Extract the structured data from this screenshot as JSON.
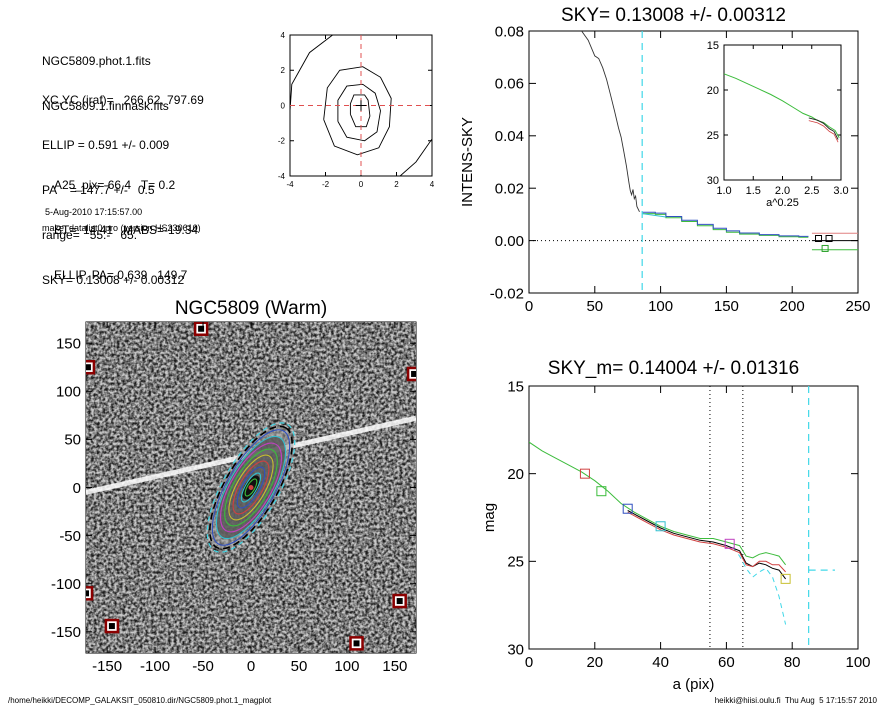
{
  "info": {
    "lines_a": [
      "NGC5809.phot.1.fits",
      "NGC5809.1.finmask.fits"
    ],
    "lines_b": [
      "XC,YC (iraf)=   266.62, 797.69",
      "ELLIP = 0.591 +/- 0.009",
      "PA    = 147.7 +/-   0.5",
      "range=   55.-   65.",
      "SKY= 0.13008 +/- 0.00312"
    ],
    "lines_c": [
      "A25_pix= 66.4   T= 0.2",
      "BT=  14.41   MABS=-19.34",
      "ELLIP, PA= 0.639   149.7"
    ],
    "timestamp": "5-Aug-2010 17:15:57.00",
    "program": "make_datalist0.pro (version HS230610)"
  },
  "footer": {
    "path": "/home/heikki/DECOMP_GALAKSIT_050810.dir/NGC5809.phot.1_magplot",
    "user": "heikki@hiisi.oulu.fi  Thu Aug  5 17:15:57 2010"
  },
  "chart_data": [
    {
      "id": "contour",
      "type": "line",
      "title": "",
      "xlim": [
        -4,
        4
      ],
      "ylim": [
        -4,
        4
      ],
      "xticks": [
        -4,
        -2,
        0,
        2,
        4
      ],
      "yticks": [
        -4,
        -2,
        0,
        2,
        4
      ],
      "xticklabels": [
        "-4",
        "-2",
        "0",
        "2",
        "4"
      ],
      "yticklabels": [
        "-4",
        "-2",
        "0",
        "2",
        "4"
      ],
      "contours": [
        [
          [
            -0.6,
            -0.5
          ],
          [
            -0.3,
            -1.2
          ],
          [
            0.3,
            -1.2
          ],
          [
            0.5,
            -0.6
          ],
          [
            0.4,
            0.3
          ],
          [
            0.2,
            0.6
          ],
          [
            -0.4,
            0.6
          ],
          [
            -0.6,
            0.1
          ],
          [
            -0.6,
            -0.5
          ]
        ],
        [
          [
            -1.3,
            -0.9
          ],
          [
            -0.8,
            -1.8
          ],
          [
            0.2,
            -2.0
          ],
          [
            0.9,
            -1.5
          ],
          [
            1.1,
            -0.3
          ],
          [
            0.8,
            0.7
          ],
          [
            0.1,
            1.2
          ],
          [
            -0.8,
            1.1
          ],
          [
            -1.3,
            0.3
          ],
          [
            -1.3,
            -0.9
          ]
        ],
        [
          [
            -2.1,
            -0.8
          ],
          [
            -1.5,
            -2.3
          ],
          [
            -0.2,
            -2.8
          ],
          [
            1.0,
            -2.4
          ],
          [
            1.6,
            -1.2
          ],
          [
            1.7,
            0.4
          ],
          [
            1.1,
            1.6
          ],
          [
            0.1,
            2.2
          ],
          [
            -1.2,
            2.0
          ],
          [
            -1.9,
            1.0
          ],
          [
            -2.1,
            -0.8
          ]
        ],
        [
          [
            -1.6,
            4.0
          ],
          [
            -2.9,
            3.0
          ],
          [
            -3.9,
            1.2
          ],
          [
            -4.0,
            -0.3
          ]
        ],
        [
          [
            2.2,
            -4.0
          ],
          [
            3.1,
            -3.2
          ],
          [
            4.0,
            -1.9
          ]
        ]
      ],
      "crosshair": [
        0,
        0
      ]
    },
    {
      "id": "sky",
      "type": "line",
      "title": "SKY= 0.13008 +/- 0.00312",
      "xlabel": "",
      "ylabel": "INTENS-SKY",
      "xlim": [
        0,
        250
      ],
      "ylim": [
        -0.02,
        0.08
      ],
      "xticks": [
        0,
        50,
        100,
        150,
        200,
        250
      ],
      "yticks": [
        -0.02,
        0.0,
        0.02,
        0.04,
        0.06,
        0.08
      ],
      "xticklabels": [
        "0",
        "50",
        "100",
        "150",
        "200",
        "250"
      ],
      "yticklabels": [
        "-0.02",
        "0.00",
        "0.02",
        "0.04",
        "0.06",
        "0.08"
      ],
      "profile": [
        [
          40,
          0.08
        ],
        [
          45,
          0.0765
        ],
        [
          50,
          0.0705
        ],
        [
          53,
          0.0695
        ],
        [
          56,
          0.066
        ],
        [
          59,
          0.0615
        ],
        [
          62,
          0.0555
        ],
        [
          65,
          0.0495
        ],
        [
          68,
          0.043
        ],
        [
          70,
          0.0395
        ],
        [
          72,
          0.034
        ],
        [
          74,
          0.0285
        ],
        [
          76,
          0.022
        ],
        [
          77,
          0.019
        ],
        [
          78,
          0.0175
        ],
        [
          79,
          0.0195
        ],
        [
          80,
          0.016
        ],
        [
          81,
          0.017
        ],
        [
          82,
          0.013
        ],
        [
          84,
          0.011
        ]
      ],
      "sky_steps_blue": [
        [
          86,
          0.0108
        ],
        [
          96,
          0.0105
        ],
        [
          104,
          0.0092
        ],
        [
          116,
          0.0078
        ],
        [
          128,
          0.0062
        ],
        [
          140,
          0.0047
        ],
        [
          150,
          0.0037
        ],
        [
          160,
          0.0029
        ],
        [
          175,
          0.0023
        ],
        [
          190,
          0.0018
        ],
        [
          205,
          0.0016
        ],
        [
          212,
          0.0015
        ]
      ],
      "sky_steps_green": [
        [
          86,
          0.0103
        ],
        [
          96,
          0.01
        ],
        [
          104,
          0.0087
        ],
        [
          116,
          0.0073
        ],
        [
          128,
          0.0057
        ],
        [
          140,
          0.0042
        ],
        [
          150,
          0.0032
        ],
        [
          160,
          0.0025
        ],
        [
          175,
          0.002
        ],
        [
          190,
          0.0015
        ],
        [
          205,
          0.0013
        ],
        [
          212,
          0.0012
        ]
      ],
      "zero_line": 0.0,
      "vline_x": 86,
      "markers": [
        {
          "x": 220,
          "y": 0.0008,
          "color": "#000000"
        },
        {
          "x": 228,
          "y": 0.0008,
          "color": "#000000"
        },
        {
          "x": 225,
          "y": -0.003,
          "color": "#2aa02a"
        }
      ],
      "side_lines": [
        {
          "y": 0.0028,
          "color": "#e08080"
        },
        {
          "y": 0.0,
          "color": "#000000"
        },
        {
          "y": -0.0035,
          "color": "#3cbc3c"
        }
      ]
    },
    {
      "id": "inset",
      "type": "line",
      "title": "",
      "xlabel": "a^0.25",
      "ylabel": "",
      "xlim": [
        1.0,
        3.0
      ],
      "ylim": [
        30,
        15
      ],
      "xticks": [
        1.0,
        1.5,
        2.0,
        2.5,
        3.0
      ],
      "yticks": [
        15,
        20,
        25,
        30
      ],
      "xticklabels": [
        "1.0",
        "1.5",
        "2.0",
        "2.5",
        "3.0"
      ],
      "yticklabels": [
        "15",
        "20",
        "25",
        "30"
      ],
      "curve_green": [
        [
          1.0,
          18.2
        ],
        [
          1.2,
          18.7
        ],
        [
          1.4,
          19.3
        ],
        [
          1.6,
          19.9
        ],
        [
          1.8,
          20.5
        ],
        [
          2.0,
          21.2
        ],
        [
          2.2,
          22.0
        ],
        [
          2.35,
          22.6
        ],
        [
          2.5,
          23.0
        ],
        [
          2.6,
          23.4
        ],
        [
          2.7,
          23.6
        ],
        [
          2.8,
          24.1
        ],
        [
          2.9,
          24.5
        ],
        [
          2.97,
          25.3
        ]
      ],
      "curve_dark": [
        [
          2.45,
          23.1
        ],
        [
          2.6,
          23.35
        ],
        [
          2.7,
          23.7
        ],
        [
          2.8,
          24.3
        ],
        [
          2.88,
          24.6
        ],
        [
          2.95,
          25.5
        ]
      ]
    },
    {
      "id": "mag",
      "type": "line",
      "title": "SKY_m=  0.14004 +/- 0.01316",
      "xlabel": "a (pix)",
      "ylabel": "mag",
      "xlim": [
        0,
        100
      ],
      "ylim": [
        30,
        15
      ],
      "xticks": [
        0,
        20,
        40,
        60,
        80,
        100
      ],
      "yticks": [
        15,
        20,
        25,
        30
      ],
      "xticklabels": [
        "0",
        "20",
        "40",
        "60",
        "80",
        "100"
      ],
      "yticklabels": [
        "15",
        "20",
        "25",
        "30"
      ],
      "series": [
        {
          "name": "green",
          "color": "#3cbc3c",
          "points": [
            [
              0,
              18.2
            ],
            [
              4,
              18.7
            ],
            [
              8,
              19.1
            ],
            [
              12,
              19.5
            ],
            [
              16,
              19.9
            ],
            [
              20,
              20.4
            ],
            [
              24,
              21.0
            ],
            [
              28,
              21.7
            ],
            [
              32,
              22.2
            ],
            [
              36,
              22.6
            ],
            [
              40,
              23.0
            ],
            [
              44,
              23.3
            ],
            [
              48,
              23.5
            ],
            [
              52,
              23.7
            ],
            [
              56,
              23.7
            ],
            [
              60,
              23.9
            ],
            [
              64,
              24.1
            ],
            [
              66,
              24.7
            ],
            [
              68,
              24.8
            ],
            [
              70,
              24.6
            ],
            [
              72,
              24.5
            ],
            [
              74,
              24.6
            ],
            [
              76,
              24.7
            ],
            [
              78,
              25.2
            ]
          ]
        },
        {
          "name": "black",
          "color": "#000000",
          "points": [
            [
              30,
              22.1
            ],
            [
              36,
              22.7
            ],
            [
              40,
              23.1
            ],
            [
              44,
              23.4
            ],
            [
              48,
              23.6
            ],
            [
              52,
              23.8
            ],
            [
              56,
              23.9
            ],
            [
              60,
              24.1
            ],
            [
              64,
              24.4
            ],
            [
              66,
              25.1
            ],
            [
              68,
              25.3
            ],
            [
              70,
              25.1
            ],
            [
              72,
              25.2
            ],
            [
              74,
              25.4
            ],
            [
              76,
              25.5
            ],
            [
              78,
              26.0
            ]
          ]
        },
        {
          "name": "red",
          "color": "#d04040",
          "points": [
            [
              30,
              22.2
            ],
            [
              36,
              22.8
            ],
            [
              40,
              23.2
            ],
            [
              44,
              23.5
            ],
            [
              48,
              23.7
            ],
            [
              52,
              23.9
            ],
            [
              56,
              24.0
            ],
            [
              60,
              24.2
            ],
            [
              64,
              24.5
            ],
            [
              66,
              25.2
            ],
            [
              68,
              25.3
            ],
            [
              70,
              25.0
            ],
            [
              72,
              25.0
            ],
            [
              74,
              25.2
            ],
            [
              76,
              25.2
            ],
            [
              78,
              25.6
            ]
          ]
        }
      ],
      "dashed_cyan": [
        [
          62,
          24.2
        ],
        [
          64,
          24.7
        ],
        [
          66,
          25.4
        ],
        [
          68,
          25.9
        ],
        [
          70,
          25.6
        ],
        [
          72,
          25.4
        ],
        [
          74,
          25.9
        ],
        [
          76,
          27.0
        ],
        [
          78,
          28.6
        ]
      ],
      "vlines_dotted": [
        55,
        65
      ],
      "vline_dashed": 85,
      "hline_dashed": {
        "x0": 85,
        "x1": 93,
        "y": 25.5
      },
      "markers": [
        {
          "x": 17,
          "y": 20.0,
          "color": "#d04040"
        },
        {
          "x": 22,
          "y": 21.0,
          "color": "#3cbc3c"
        },
        {
          "x": 30,
          "y": 22.0,
          "color": "#3050c0"
        },
        {
          "x": 40,
          "y": 23.0,
          "color": "#30c0d0"
        },
        {
          "x": 61,
          "y": 24.0,
          "color": "#c040c0"
        },
        {
          "x": 78,
          "y": 26.0,
          "color": "#c8c030"
        }
      ]
    },
    {
      "id": "galaxy",
      "type": "scatter",
      "title": "NGC5809 (Warm)",
      "xlabel": "",
      "ylabel": "",
      "xlim": [
        -172,
        172
      ],
      "ylim": [
        -172,
        172
      ],
      "xticks": [
        -150,
        -100,
        -50,
        0,
        50,
        100,
        150
      ],
      "yticks": [
        -150,
        -100,
        -50,
        0,
        50,
        100,
        150
      ],
      "xticklabels": [
        "-150",
        "-100",
        "-50",
        "0",
        "50",
        "100",
        "150"
      ],
      "yticklabels": [
        "-150",
        "-100",
        "-50",
        "0",
        "50",
        "100",
        "150"
      ],
      "stars": [
        {
          "x": -52,
          "y": 165
        },
        {
          "x": 170,
          "y": 118
        },
        {
          "x": -172,
          "y": -110
        },
        {
          "x": -145,
          "y": -144
        },
        {
          "x": 155,
          "y": -118
        },
        {
          "x": 110,
          "y": -162
        },
        {
          "x": -170,
          "y": 125
        }
      ],
      "ellipse_pa": 150,
      "ellipse_ab": [
        [
          68,
          25
        ],
        [
          60,
          23
        ],
        [
          52,
          21
        ],
        [
          45,
          18
        ],
        [
          38,
          15
        ],
        [
          31,
          12
        ],
        [
          24,
          9
        ],
        [
          17,
          6
        ],
        [
          10,
          4
        ]
      ],
      "ellipse_colors": [
        "#3050c0",
        "#30c0d0",
        "#c040c0",
        "#3cbc3c",
        "#c8c030",
        "#d04040",
        "#3050c0",
        "#30c0d0",
        "#3cbc3c"
      ]
    }
  ]
}
